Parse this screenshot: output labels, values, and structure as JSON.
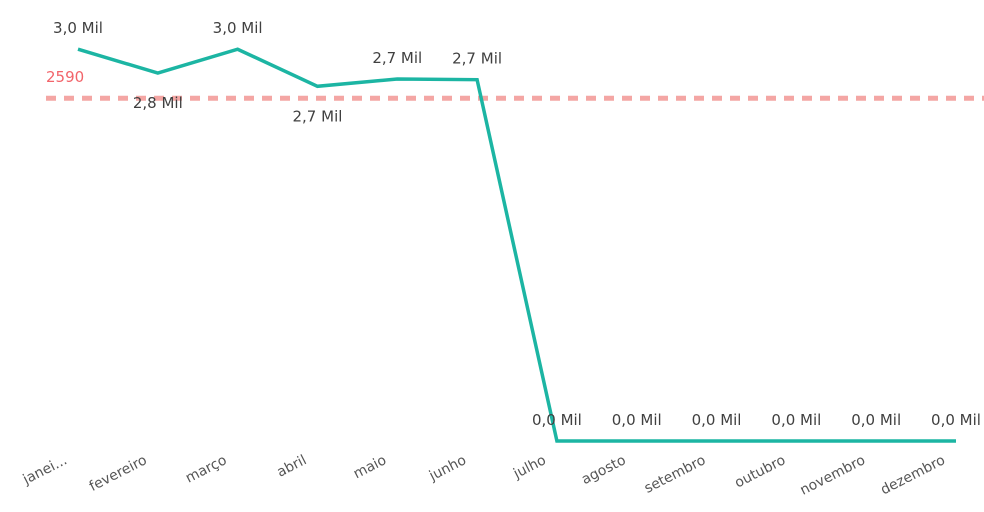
{
  "chart_data": {
    "type": "line",
    "title": "",
    "xlabel": "",
    "ylabel": "",
    "categories": [
      "janei...",
      "fevereiro",
      "março",
      "abril",
      "maio",
      "junho",
      "julho",
      "agosto",
      "setembro",
      "outubro",
      "novembro",
      "dezembro"
    ],
    "series": [
      {
        "values": [
          2960,
          2780,
          2960,
          2680,
          2735,
          2730,
          0,
          0,
          0,
          0,
          0,
          0
        ],
        "data_labels": [
          "3,0 Mil",
          "2,8 Mil",
          "3,0 Mil",
          "2,7 Mil",
          "2,7 Mil",
          "2,7 Mil",
          "0,0 Mil",
          "0,0 Mil",
          "0,0 Mil",
          "0,0 Mil",
          "0,0 Mil",
          "0,0 Mil"
        ],
        "label_position": [
          "above",
          "below",
          "above",
          "below",
          "above",
          "above",
          "above",
          "above",
          "above",
          "above",
          "above",
          "above"
        ],
        "color": "#1cb5a3"
      }
    ],
    "reference_line": {
      "value": 2590,
      "label": "2590",
      "color": "#f4a6a4",
      "label_color": "#f2646a",
      "style": "dashed"
    },
    "ylim": [
      0,
      3060
    ],
    "grid": false,
    "legend": "none",
    "tick_rotation_deg": -27
  }
}
